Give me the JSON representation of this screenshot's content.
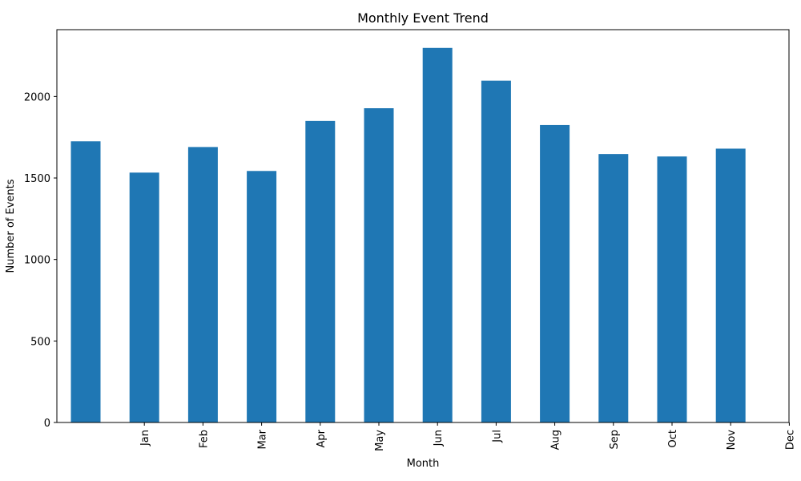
{
  "chart_data": {
    "type": "bar",
    "title": "Monthly Event Trend",
    "xlabel": "Month",
    "ylabel": "Number of Events",
    "values": [
      1725,
      1533,
      1690,
      1543,
      1850,
      1928,
      2298,
      2097,
      1825,
      1647,
      1632,
      1680
    ],
    "xtick_labels": [
      "Jan",
      "Feb",
      "Mar",
      "Apr",
      "May",
      "Jun",
      "Jul",
      "Aug",
      "Sep",
      "Oct",
      "Nov",
      "Dec"
    ],
    "ylim": [
      0,
      2410
    ],
    "yticks": [
      0,
      500,
      1000,
      1500,
      2000
    ],
    "bar_color": "#1f77b4",
    "grid": false,
    "legend": "none"
  }
}
